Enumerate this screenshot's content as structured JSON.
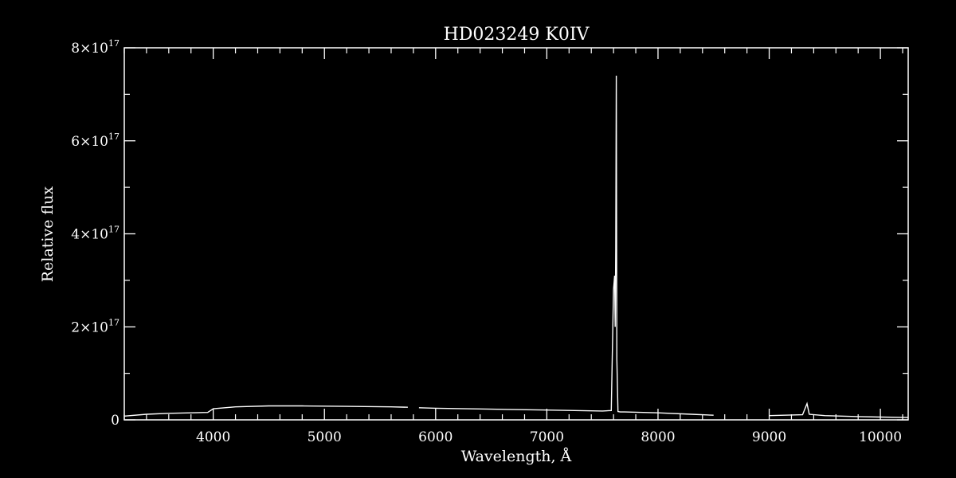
{
  "chart_data": {
    "type": "line",
    "title": "HD023249   K0IV",
    "xlabel": "Wavelength, Å",
    "ylabel": "Relative flux",
    "xlim": [
      3200,
      10250
    ],
    "ylim": [
      0,
      8e+17
    ],
    "x_ticks": [
      4000,
      5000,
      6000,
      7000,
      8000,
      9000,
      10000
    ],
    "x_tick_labels": [
      "4000",
      "5000",
      "6000",
      "7000",
      "8000",
      "9000",
      "10000"
    ],
    "y_ticks": [
      {
        "value": 0,
        "mantissa": "0",
        "exponent": ""
      },
      {
        "value": 2e+17,
        "mantissa": "2×10",
        "exponent": "17"
      },
      {
        "value": 4e+17,
        "mantissa": "4×10",
        "exponent": "17"
      },
      {
        "value": 6e+17,
        "mantissa": "6×10",
        "exponent": "17"
      },
      {
        "value": 8e+17,
        "mantissa": "8×10",
        "exponent": "17"
      }
    ],
    "grid": false,
    "series": [
      {
        "x": [
          3200,
          3400,
          3600,
          3800,
          3950,
          4000,
          4200,
          4500,
          4800,
          5200,
          5600,
          5750,
          5850,
          6000,
          6500,
          7000,
          7500,
          7580,
          7600,
          7610,
          7615,
          7620,
          7625,
          7630,
          7640,
          7660,
          7700,
          8000,
          8300,
          8500,
          8700,
          9000,
          9300,
          9340,
          9360,
          9500,
          9800,
          10000,
          10250
        ],
        "y": [
          8000000000000000.0,
          1.2e+16,
          1.4e+16,
          1.5e+16,
          1.6e+16,
          2.4e+16,
          2.8e+16,
          3e+16,
          3e+16,
          2.9e+16,
          2.8e+16,
          2.7e+16,
          2.6e+16,
          2.5e+16,
          2.3e+16,
          2.1e+16,
          1.9e+16,
          2e+16,
          2.8e+17,
          3.1e+17,
          2e+17,
          3.7e+17,
          7.4e+17,
          1.3e+17,
          1.8e+16,
          1.7e+16,
          1.7e+16,
          1.5e+16,
          1.2e+16,
          1e+16,
          1e+16,
          9000000000000000.0,
          1.1e+16,
          3.5e+16,
          1.2e+16,
          9000000000000000.0,
          7000000000000000.0,
          6000000000000000.0,
          5000000000000000.0
        ],
        "gaps": [
          [
            5760,
            5840
          ],
          [
            8540,
            8700
          ],
          [
            8810,
            8840
          ]
        ]
      }
    ]
  }
}
